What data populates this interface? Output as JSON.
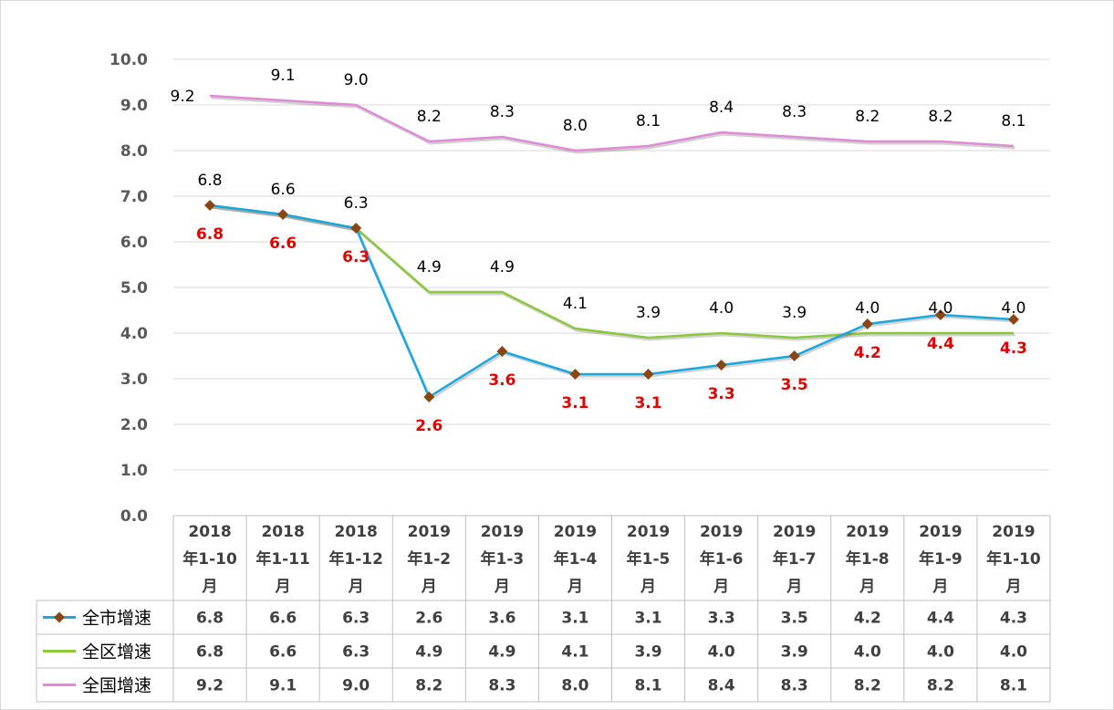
{
  "chart_data": {
    "type": "line",
    "categories": [
      [
        "2018",
        "年1-10",
        "月"
      ],
      [
        "2018",
        "年1-11",
        "月"
      ],
      [
        "2018",
        "年1-12",
        "月"
      ],
      [
        "2019",
        "年1-2",
        "月"
      ],
      [
        "2019",
        "年1-3",
        "月"
      ],
      [
        "2019",
        "年1-4",
        "月"
      ],
      [
        "2019",
        "年1-5",
        "月"
      ],
      [
        "2019",
        "年1-6",
        "月"
      ],
      [
        "2019",
        "年1-7",
        "月"
      ],
      [
        "2019",
        "年1-8",
        "月"
      ],
      [
        "2019",
        "年1-9",
        "月"
      ],
      [
        "2019",
        "年1-10",
        "月"
      ]
    ],
    "series": [
      {
        "name": "全市增速",
        "values": [
          6.8,
          6.6,
          6.3,
          2.6,
          3.6,
          3.1,
          3.1,
          3.3,
          3.5,
          4.2,
          4.4,
          4.3
        ],
        "color": "#1aa7e0",
        "marker": "diamond",
        "marker_color": "#8b4513",
        "label_color": "#e00000",
        "labels_shown": true
      },
      {
        "name": "全区增速",
        "values": [
          6.8,
          6.6,
          6.3,
          4.9,
          4.9,
          4.1,
          3.9,
          4.0,
          3.9,
          4.0,
          4.0,
          4.0
        ],
        "color": "#8dc63f",
        "marker": "none",
        "label_color": "#000000",
        "labels_shown": true
      },
      {
        "name": "全国增速",
        "values": [
          9.2,
          9.1,
          9.0,
          8.2,
          8.3,
          8.0,
          8.1,
          8.4,
          8.3,
          8.2,
          8.2,
          8.1
        ],
        "color": "#e08bd6",
        "marker": "none",
        "label_color": "#000000",
        "labels_shown": true
      }
    ],
    "y_ticks": [
      "0.0",
      "1.0",
      "2.0",
      "3.0",
      "4.0",
      "5.0",
      "6.0",
      "7.0",
      "8.0",
      "9.0",
      "10.0"
    ],
    "ylim": [
      0,
      10
    ],
    "grid": true,
    "legend": "data-table",
    "title": "",
    "xlabel": "",
    "ylabel": ""
  }
}
